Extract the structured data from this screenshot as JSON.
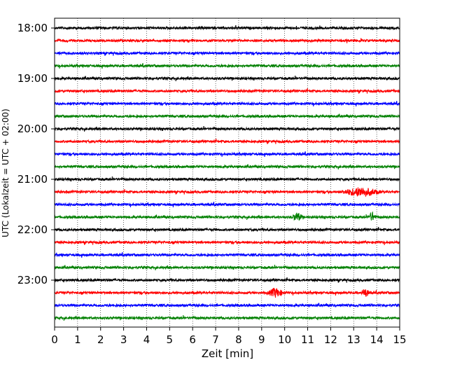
{
  "chart_data": {
    "type": "line",
    "title": "",
    "xlabel": "Zeit  [min]",
    "ylabel": "UTC (Lokalzeit = UTC + 02:00)",
    "xlim": [
      0,
      15
    ],
    "x_ticks": [
      "0",
      "1",
      "2",
      "3",
      "4",
      "5",
      "6",
      "7",
      "8",
      "9",
      "10",
      "11",
      "12",
      "13",
      "14",
      "15"
    ],
    "y_tick_labels": [
      "18:00",
      "19:00",
      "20:00",
      "21:00",
      "22:00",
      "23:00"
    ],
    "grid": "vertical dotted lines at each minute",
    "trace_interval_minutes": 15,
    "traces_start": "18:00",
    "traces_end": "23:45",
    "series_colors": [
      "#000000",
      "#ff0000",
      "#0000ff",
      "#008000"
    ],
    "events": [
      {
        "trace": "21:15",
        "x_start": 12.5,
        "x_end": 14.3,
        "peak": 13.3
      },
      {
        "trace": "21:45",
        "x_start": 10.3,
        "x_end": 10.8,
        "peak": 10.55
      },
      {
        "trace": "21:45",
        "x_start": 13.6,
        "x_end": 14.0,
        "peak": 13.8
      },
      {
        "trace": "23:15",
        "x_start": 9.2,
        "x_end": 10.0,
        "peak": 9.6
      },
      {
        "trace": "23:15",
        "x_start": 13.3,
        "x_end": 13.7,
        "peak": 13.5
      }
    ]
  }
}
